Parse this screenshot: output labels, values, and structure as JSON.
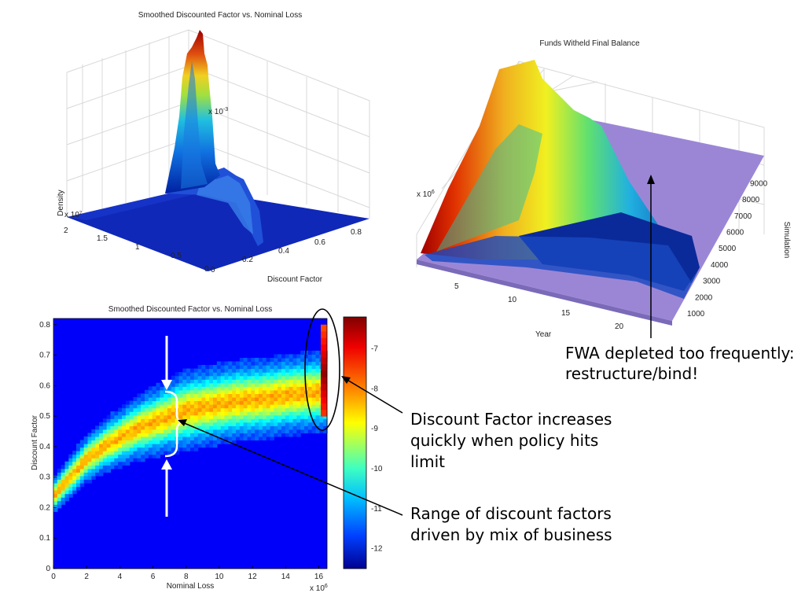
{
  "chart_data": [
    {
      "type": "surface",
      "title": "Smoothed Discounted Factor vs. Nominal Loss",
      "xlabel": "Discount Factor",
      "ylabel": "",
      "zlabel": "Density",
      "z_multiplier": "x 10",
      "z_exponent": "-3",
      "y_multiplier": "x 10",
      "y_exponent": "7",
      "x_ticks": [
        "0.2",
        "0.4",
        "0.6",
        "0.8"
      ],
      "y_ticks": [
        "2",
        "1.5",
        "1",
        "0.5",
        "0"
      ],
      "x_origin_label": "0",
      "colormap": "jet"
    },
    {
      "type": "surface",
      "title": "Funds Witheld Final Balance",
      "xlabel": "Year",
      "ylabel": "Simulation",
      "z_multiplier": "x 10",
      "z_exponent": "6",
      "x_ticks": [
        "5",
        "10",
        "15",
        "20"
      ],
      "y_ticks": [
        "1000",
        "2000",
        "3000",
        "4000",
        "5000",
        "6000",
        "7000",
        "8000",
        "9000"
      ],
      "floor_color": "#9b86d6",
      "colormap": "jet"
    },
    {
      "type": "heatmap",
      "title": "Smoothed Discounted Factor vs. Nominal Loss",
      "xlabel": "Nominal Loss",
      "ylabel": "Discount Factor",
      "x_multiplier": "x 10",
      "x_exponent": "6",
      "xlim": [
        0,
        16.5
      ],
      "ylim": [
        0,
        0.82
      ],
      "x_ticks": [
        0,
        2,
        4,
        6,
        8,
        10,
        12,
        14,
        16
      ],
      "y_ticks": [
        0,
        0.1,
        0.2,
        0.3,
        0.4,
        0.5,
        0.6,
        0.7,
        0.8
      ],
      "colorbar_ticks": [
        -7,
        -8,
        -9,
        -10,
        -11,
        -12
      ],
      "colorbar_range": [
        -12.5,
        -6.2
      ],
      "band_center": [
        [
          0,
          0.24
        ],
        [
          1,
          0.3
        ],
        [
          2,
          0.36
        ],
        [
          3,
          0.4
        ],
        [
          4,
          0.43
        ],
        [
          5,
          0.46
        ],
        [
          6,
          0.48
        ],
        [
          7,
          0.5
        ],
        [
          8,
          0.52
        ],
        [
          9,
          0.53
        ],
        [
          10,
          0.54
        ],
        [
          11,
          0.55
        ],
        [
          12,
          0.555
        ],
        [
          13,
          0.56
        ],
        [
          14,
          0.57
        ],
        [
          15,
          0.575
        ],
        [
          16,
          0.58
        ]
      ],
      "limit_column": {
        "x": 16.5,
        "y_range": [
          0.5,
          0.8
        ]
      },
      "colormap": "jet"
    }
  ],
  "annotations": {
    "fwa": [
      "FWA depleted too frequently:",
      "restructure/bind!"
    ],
    "discount_increase": [
      "Discount Factor increases",
      "quickly when policy hits",
      "limit"
    ],
    "range": [
      "Range of discount factors",
      "driven by mix of business"
    ]
  }
}
